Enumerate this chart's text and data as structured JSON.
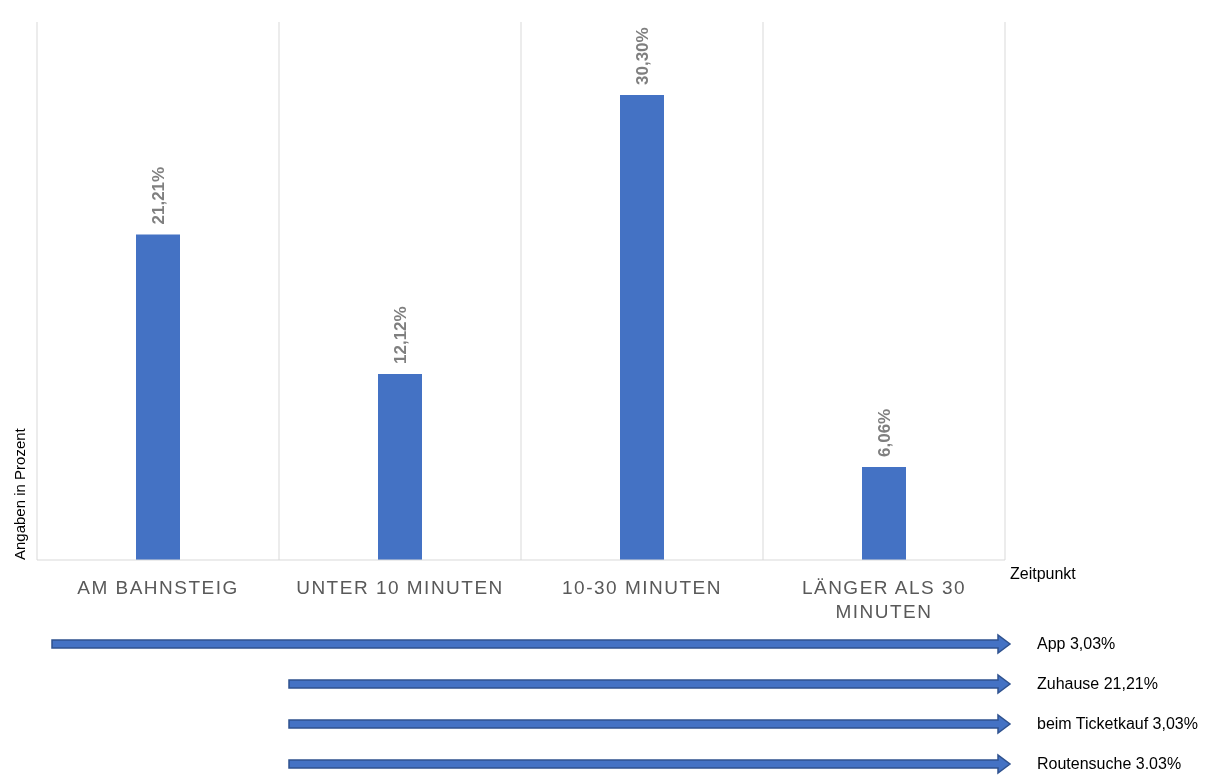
{
  "chart_data": {
    "type": "bar",
    "xlabel": "Zeitpunkt",
    "ylabel": "Angaben in Prozent",
    "categories": [
      "AM BAHNSTEIG",
      "UNTER 10 MINUTEN",
      "10-30 MINUTEN",
      "LÄNGER ALS 30 MINUTEN"
    ],
    "values": [
      21.21,
      12.12,
      30.3,
      6.06
    ],
    "value_labels": [
      "21,21%",
      "12,12%",
      "30,30%",
      "6,06%"
    ],
    "color": "#4472c4",
    "grid": "x",
    "annotations": [
      "App 3,03%",
      "Zuhause 21,21%",
      "beim Ticketkauf 3,03%",
      "Routensuche 3.03%"
    ]
  }
}
